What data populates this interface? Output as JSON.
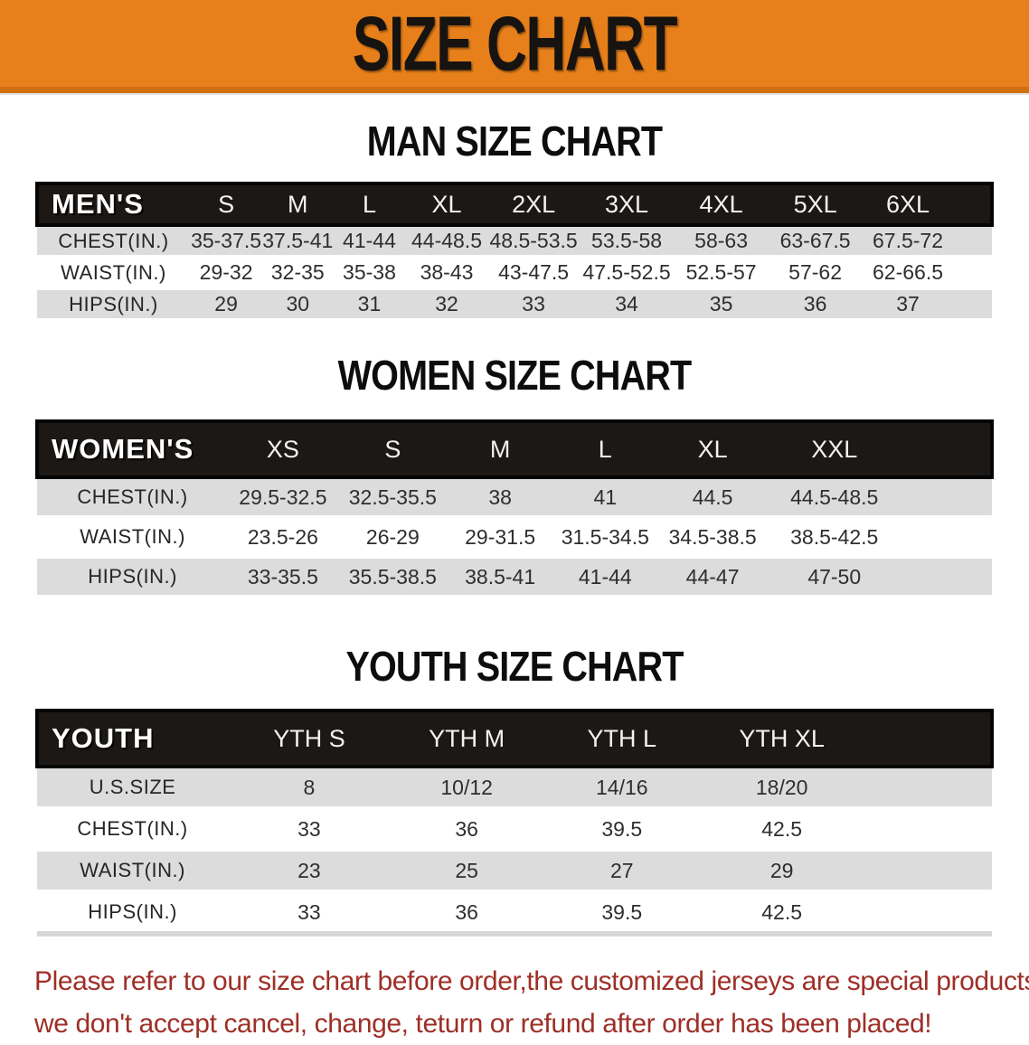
{
  "banner": {
    "title": "SIZE CHART",
    "background_color": "#E7801A"
  },
  "men": {
    "section_title": "MAN SIZE CHART",
    "header": {
      "label": "MEN'S",
      "sizes": [
        "S",
        "M",
        "L",
        "XL",
        "2XL",
        "3XL",
        "4XL",
        "5XL",
        "6XL"
      ]
    },
    "rows": [
      {
        "label": "CHEST(IN.)",
        "values": [
          "35-37.5",
          "37.5-41",
          "41-44",
          "44-48.5",
          "48.5-53.5",
          "53.5-58",
          "58-63",
          "63-67.5",
          "67.5-72"
        ]
      },
      {
        "label": "WAIST(IN.)",
        "values": [
          "29-32",
          "32-35",
          "35-38",
          "38-43",
          "43-47.5",
          "47.5-52.5",
          "52.5-57",
          "57-62",
          "62-66.5"
        ]
      },
      {
        "label": "HIPS(IN.)",
        "values": [
          "29",
          "30",
          "31",
          "32",
          "33",
          "34",
          "35",
          "36",
          "37"
        ]
      }
    ]
  },
  "women": {
    "section_title": "WOMEN SIZE CHART",
    "header": {
      "label": "WOMEN'S",
      "sizes": [
        "XS",
        "S",
        "M",
        "L",
        "XL",
        "XXL"
      ]
    },
    "rows": [
      {
        "label": "CHEST(IN.)",
        "values": [
          "29.5-32.5",
          "32.5-35.5",
          "38",
          "41",
          "44.5",
          "44.5-48.5"
        ]
      },
      {
        "label": "WAIST(IN.)",
        "values": [
          "23.5-26",
          "26-29",
          "29-31.5",
          "31.5-34.5",
          "34.5-38.5",
          "38.5-42.5"
        ]
      },
      {
        "label": "HIPS(IN.)",
        "values": [
          "33-35.5",
          "35.5-38.5",
          "38.5-41",
          "41-44",
          "44-47",
          "47-50"
        ]
      }
    ]
  },
  "youth": {
    "section_title": "YOUTH SIZE CHART",
    "header": {
      "label": "YOUTH",
      "sizes": [
        "YTH S",
        "YTH M",
        "YTH L",
        "YTH XL"
      ]
    },
    "rows": [
      {
        "label": "U.S.SIZE",
        "values": [
          "8",
          "10/12",
          "14/16",
          "18/20"
        ]
      },
      {
        "label": "CHEST(IN.)",
        "values": [
          "33",
          "36",
          "39.5",
          "42.5"
        ]
      },
      {
        "label": "WAIST(IN.)",
        "values": [
          "23",
          "25",
          "27",
          "29"
        ]
      },
      {
        "label": "HIPS(IN.)",
        "values": [
          "33",
          "36",
          "39.5",
          "42.5"
        ]
      }
    ]
  },
  "disclaimer": {
    "line1": "Please refer to our size chart before order,the customized jerseys are special products,",
    "line2": "we don't accept cancel, change, teturn or refund after order has been placed!",
    "color": "#9E2F26"
  }
}
